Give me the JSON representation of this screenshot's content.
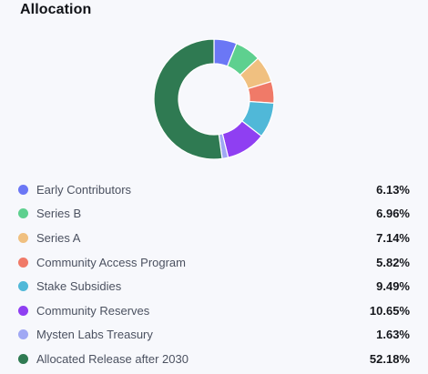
{
  "title": "Allocation",
  "chart_data": {
    "type": "pie",
    "style": "donut",
    "categories": [
      "Early Contributors",
      "Series B",
      "Series A",
      "Community Access Program",
      "Stake Subsidies",
      "Community Reserves",
      "Mysten Labs Treasury",
      "Allocated Release after 2030"
    ],
    "values": [
      6.13,
      6.96,
      7.14,
      5.82,
      9.49,
      10.65,
      1.63,
      52.18
    ],
    "value_labels": [
      "6.13%",
      "6.96%",
      "7.14%",
      "5.82%",
      "9.49%",
      "10.65%",
      "1.63%",
      "52.18%"
    ],
    "colors": [
      "#6b77f5",
      "#5ed08f",
      "#f0c080",
      "#f07a68",
      "#50b8d8",
      "#8f3ff2",
      "#a0a8f4",
      "#2f7a52"
    ],
    "legend_position": "bottom"
  }
}
